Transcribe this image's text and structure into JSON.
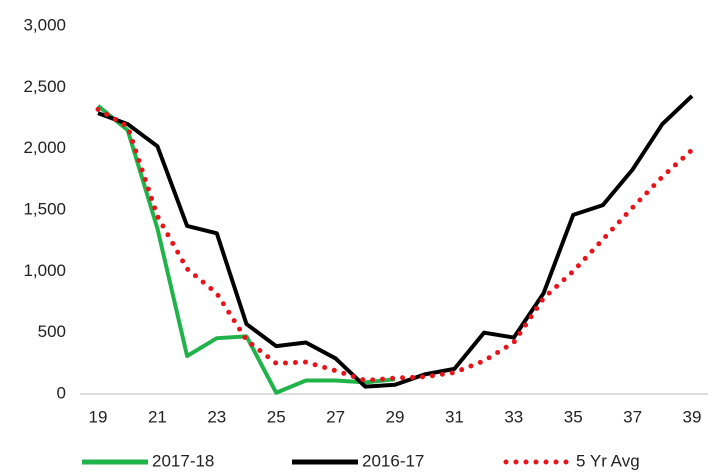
{
  "chart_data": {
    "type": "line",
    "x": [
      19,
      20,
      21,
      22,
      23,
      24,
      25,
      26,
      27,
      28,
      29,
      30,
      31,
      32,
      33,
      34,
      35,
      36,
      37,
      38,
      39
    ],
    "series": [
      {
        "name": "2017-18",
        "color": "#1fb34a",
        "style": "solid",
        "values": [
          2350,
          2150,
          1350,
          310,
          455,
          470,
          10,
          110,
          110,
          95,
          120,
          null,
          null,
          null,
          null,
          null,
          null,
          null,
          null,
          null,
          null
        ]
      },
      {
        "name": "2016-17",
        "color": "#000000",
        "style": "solid",
        "values": [
          2290,
          2200,
          2020,
          1370,
          1310,
          570,
          390,
          420,
          290,
          60,
          75,
          160,
          205,
          500,
          460,
          820,
          1460,
          1540,
          1830,
          2200,
          2430
        ]
      },
      {
        "name": "5 Yr Avg",
        "color": "#e8141b",
        "style": "dotted",
        "values": [
          2320,
          2180,
          1450,
          1020,
          820,
          440,
          250,
          260,
          190,
          110,
          130,
          140,
          175,
          270,
          420,
          780,
          1000,
          1260,
          1520,
          1770,
          1990
        ]
      }
    ],
    "xlim": [
      19,
      39
    ],
    "xticks": [
      19,
      21,
      23,
      25,
      27,
      29,
      31,
      33,
      35,
      37,
      39
    ],
    "ylim": [
      0,
      3000
    ],
    "yticks": [
      0,
      500,
      {
        "value": 1000,
        "label": "1,000"
      },
      {
        "value": 1500,
        "label": "1,500"
      },
      {
        "value": 2000,
        "label": "2,000"
      },
      {
        "value": 2500,
        "label": "2,500"
      },
      {
        "value": 3000,
        "label": "3,000"
      }
    ],
    "grid": false,
    "legend": "bottom"
  }
}
